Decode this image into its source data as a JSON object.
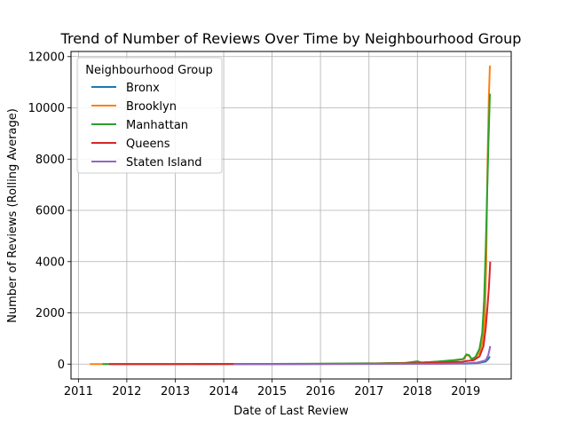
{
  "chart_data": {
    "type": "line",
    "title": "Trend of Number of Reviews Over Time by Neighbourhood Group",
    "xlabel": "Date of Last Review",
    "ylabel": "Number of Reviews (Rolling Average)",
    "xlim": [
      "2010-11-06",
      "2019-12-10"
    ],
    "ylim": [
      -580,
      12200
    ],
    "x_ticks": [
      "2011",
      "2012",
      "2013",
      "2014",
      "2015",
      "2016",
      "2017",
      "2018",
      "2019"
    ],
    "y_ticks": [
      "0",
      "2000",
      "4000",
      "6000",
      "8000",
      "10000",
      "12000"
    ],
    "grid": true,
    "legend": {
      "title": "Neighbourhood Group",
      "placement": "top-left"
    },
    "series": [
      {
        "name": "Bronx",
        "color": "#1f77b4",
        "points": [
          [
            "2013-06-01",
            0
          ],
          [
            "2015-01-01",
            3
          ],
          [
            "2016-06-01",
            5
          ],
          [
            "2017-06-01",
            8
          ],
          [
            "2018-06-01",
            12
          ],
          [
            "2019-01-01",
            20
          ],
          [
            "2019-04-01",
            40
          ],
          [
            "2019-06-01",
            100
          ],
          [
            "2019-06-20",
            200
          ],
          [
            "2019-07-02",
            300
          ]
        ]
      },
      {
        "name": "Brooklyn",
        "color": "#ff7f0e",
        "points": [
          [
            "2011-03-28",
            0
          ],
          [
            "2012-06-01",
            2
          ],
          [
            "2014-01-01",
            4
          ],
          [
            "2016-01-01",
            10
          ],
          [
            "2017-01-01",
            25
          ],
          [
            "2017-06-01",
            35
          ],
          [
            "2018-01-01",
            60
          ],
          [
            "2018-06-01",
            90
          ],
          [
            "2018-10-01",
            130
          ],
          [
            "2018-12-20",
            200
          ],
          [
            "2019-01-05",
            350
          ],
          [
            "2019-01-25",
            330
          ],
          [
            "2019-02-15",
            180
          ],
          [
            "2019-03-15",
            250
          ],
          [
            "2019-04-15",
            450
          ],
          [
            "2019-05-10",
            900
          ],
          [
            "2019-05-25",
            1800
          ],
          [
            "2019-06-05",
            4000
          ],
          [
            "2019-06-15",
            8000
          ],
          [
            "2019-06-25",
            10500
          ],
          [
            "2019-07-02",
            11650
          ]
        ]
      },
      {
        "name": "Manhattan",
        "color": "#2ca02c",
        "points": [
          [
            "2011-07-01",
            0
          ],
          [
            "2013-01-01",
            3
          ],
          [
            "2015-01-01",
            8
          ],
          [
            "2016-01-01",
            15
          ],
          [
            "2016-06-01",
            22
          ],
          [
            "2017-01-01",
            30
          ],
          [
            "2017-03-01",
            25
          ],
          [
            "2017-06-01",
            40
          ],
          [
            "2017-10-01",
            45
          ],
          [
            "2018-01-01",
            110
          ],
          [
            "2018-02-01",
            60
          ],
          [
            "2018-06-01",
            100
          ],
          [
            "2018-10-01",
            150
          ],
          [
            "2018-12-15",
            200
          ],
          [
            "2019-01-05",
            380
          ],
          [
            "2019-01-25",
            350
          ],
          [
            "2019-02-15",
            200
          ],
          [
            "2019-03-15",
            280
          ],
          [
            "2019-04-15",
            600
          ],
          [
            "2019-05-05",
            1200
          ],
          [
            "2019-05-20",
            2500
          ],
          [
            "2019-06-01",
            4500
          ],
          [
            "2019-06-12",
            6800
          ],
          [
            "2019-06-22",
            8800
          ],
          [
            "2019-07-02",
            10550
          ]
        ]
      },
      {
        "name": "Queens",
        "color": "#d62728",
        "points": [
          [
            "2011-08-20",
            0
          ],
          [
            "2013-01-01",
            2
          ],
          [
            "2015-01-01",
            5
          ],
          [
            "2016-06-01",
            10
          ],
          [
            "2017-06-01",
            20
          ],
          [
            "2018-01-01",
            35
          ],
          [
            "2018-06-01",
            55
          ],
          [
            "2018-12-01",
            90
          ],
          [
            "2019-01-10",
            120
          ],
          [
            "2019-03-01",
            150
          ],
          [
            "2019-04-15",
            300
          ],
          [
            "2019-05-15",
            700
          ],
          [
            "2019-06-01",
            1400
          ],
          [
            "2019-06-15",
            2300
          ],
          [
            "2019-06-25",
            3000
          ],
          [
            "2019-07-05",
            4000
          ]
        ]
      },
      {
        "name": "Staten Island",
        "color": "#9467bd",
        "points": [
          [
            "2014-03-15",
            0
          ],
          [
            "2015-06-01",
            2
          ],
          [
            "2016-06-01",
            4
          ],
          [
            "2017-06-01",
            6
          ],
          [
            "2018-06-01",
            10
          ],
          [
            "2019-01-01",
            30
          ],
          [
            "2019-04-01",
            60
          ],
          [
            "2019-06-01",
            150
          ],
          [
            "2019-06-20",
            350
          ],
          [
            "2019-07-05",
            700
          ]
        ]
      }
    ]
  }
}
